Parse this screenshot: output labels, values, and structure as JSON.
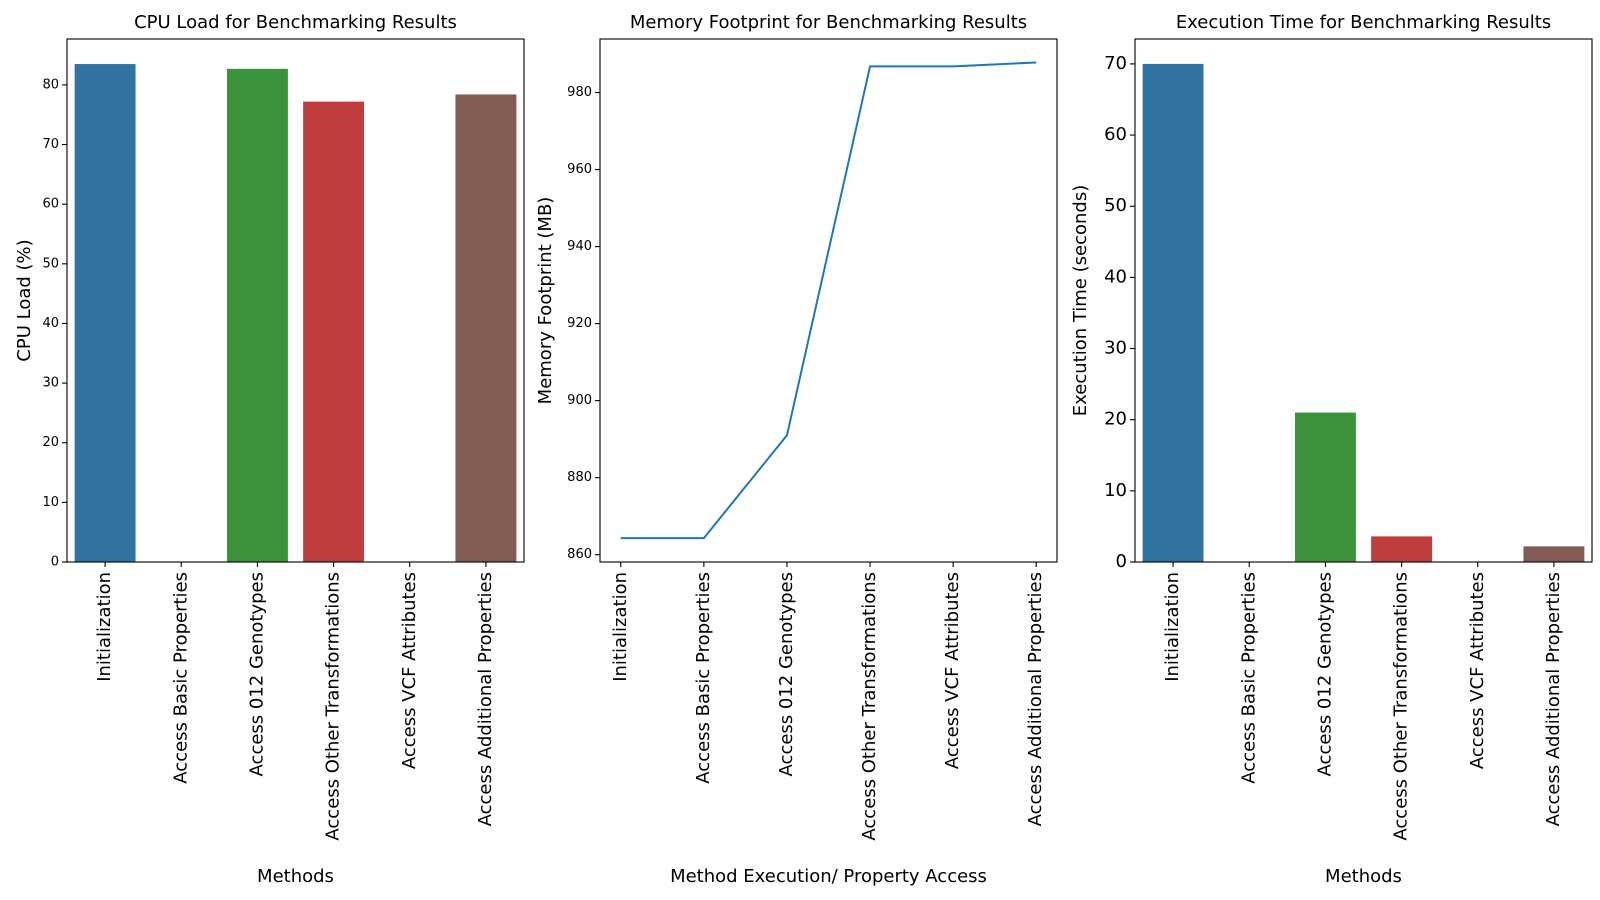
{
  "chart_data": [
    {
      "type": "bar",
      "title": "CPU Load for Benchmarking Results",
      "xlabel": "Methods",
      "ylabel": "CPU Load (%)",
      "categories": [
        "Initialization",
        "Access Basic Properties",
        "Access 012 Genotypes",
        "Access Other Transformations",
        "Access VCF Attributes",
        "Access Additional Properties"
      ],
      "values": [
        83.5,
        0,
        82.7,
        77.2,
        0,
        78.4
      ],
      "colors": [
        "#3274a1",
        "#e1812c",
        "#3a923a",
        "#c03d3e",
        "#9372b2",
        "#845b53"
      ],
      "ylim": [
        0,
        87.7
      ],
      "yticks": [
        0,
        10,
        20,
        30,
        40,
        50,
        60,
        70,
        80
      ],
      "grid": false
    },
    {
      "type": "line",
      "title": "Memory Footprint for Benchmarking Results",
      "xlabel": "Method Execution/ Property Access",
      "ylabel": "Memory Footprint (MB)",
      "categories": [
        "Initialization",
        "Access Basic Properties",
        "Access 012 Genotypes",
        "Access Other Transformations",
        "Access VCF Attributes",
        "Access Additional Properties"
      ],
      "values": [
        864.3,
        864.3,
        891.0,
        986.8,
        986.8,
        987.8
      ],
      "colors": [
        "#1f77b4"
      ],
      "ylim": [
        858.1,
        993.9
      ],
      "yticks": [
        860,
        880,
        900,
        920,
        940,
        960,
        980
      ],
      "grid": false
    },
    {
      "type": "bar",
      "title": "Execution Time for Benchmarking Results",
      "xlabel": "Methods",
      "ylabel": "Execution Time (seconds)",
      "categories": [
        "Initialization",
        "Access Basic Properties",
        "Access 012 Genotypes",
        "Access Other Transformations",
        "Access VCF Attributes",
        "Access Additional Properties"
      ],
      "values": [
        70.0,
        0.02,
        21.0,
        3.6,
        0.01,
        2.2
      ],
      "colors": [
        "#3274a1",
        "#e1812c",
        "#3a923a",
        "#c03d3e",
        "#9372b2",
        "#845b53"
      ],
      "ylim": [
        0,
        73.5
      ],
      "yticks": [
        0,
        10,
        20,
        30,
        40,
        50,
        60,
        70
      ],
      "grid": false
    }
  ]
}
